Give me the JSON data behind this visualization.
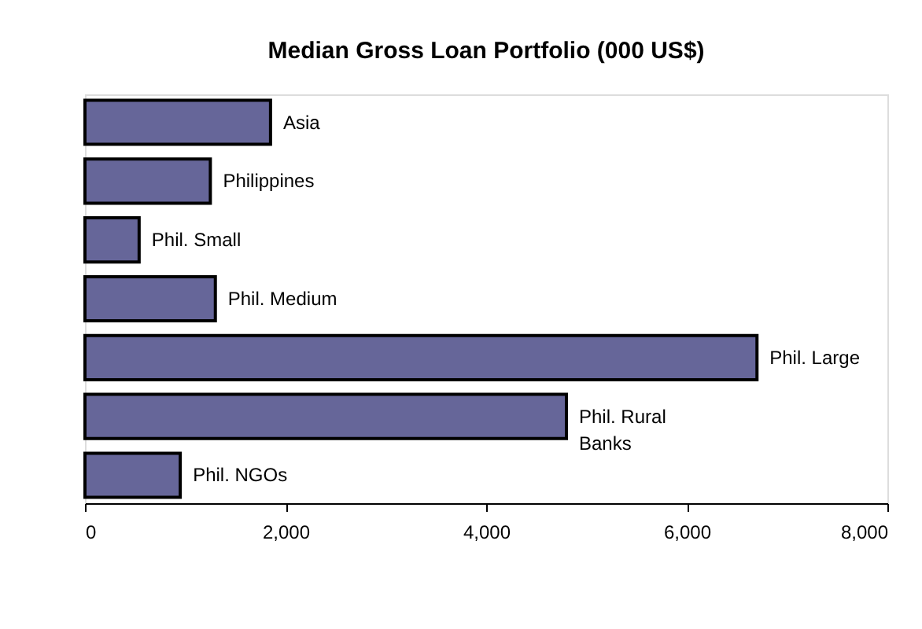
{
  "chart_data": {
    "type": "bar",
    "orientation": "horizontal",
    "title": "Median Gross Loan Portfolio (000 US$)",
    "categories": [
      "Asia",
      "Philippines",
      "Phil. Small",
      "Phil. Medium",
      "Phil. Large",
      "Phil. Rural Banks",
      "Phil. NGOs"
    ],
    "values": [
      1850,
      1250,
      540,
      1300,
      6700,
      4800,
      950
    ],
    "color": "#666699",
    "xlim": [
      0,
      8000
    ],
    "xticks": [
      0,
      {
        "value": 2000,
        "label": "2,000"
      },
      {
        "value": 4000,
        "label": "4,000"
      },
      {
        "value": 6000,
        "label": "6,000"
      },
      {
        "value": 8000,
        "label": "8,000"
      }
    ],
    "grid": false,
    "tick_labels": "x"
  }
}
